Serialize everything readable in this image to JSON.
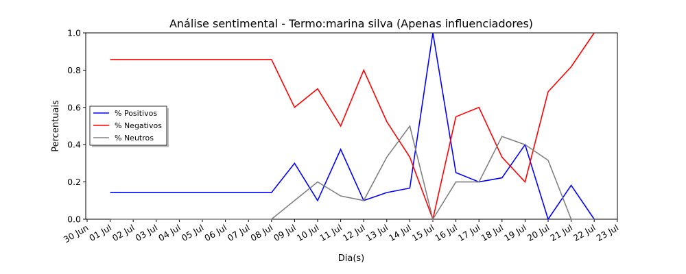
{
  "chart_data": {
    "type": "line",
    "title": "Análise sentimental - Termo:marina silva (Apenas influenciadores)",
    "xlabel": "Dia(s)",
    "ylabel": "Percentuais",
    "ylim": [
      0,
      1
    ],
    "xlim": [
      "30 Jun",
      "23 Jul"
    ],
    "x_tick_labels": [
      "30 Jun",
      "01 Jul",
      "02 Jul",
      "03 Jul",
      "04 Jul",
      "05 Jul",
      "06 Jul",
      "07 Jul",
      "08 Jul",
      "09 Jul",
      "10 Jul",
      "11 Jul",
      "12 Jul",
      "13 Jul",
      "14 Jul",
      "15 Jul",
      "16 Jul",
      "17 Jul",
      "18 Jul",
      "19 Jul",
      "20 Jul",
      "21 Jul",
      "22 Jul",
      "23 Jul"
    ],
    "y_tick_labels": [
      "0.0",
      "0.2",
      "0.4",
      "0.6",
      "0.8",
      "1.0"
    ],
    "y_ticks": [
      0,
      0.2,
      0.4,
      0.6,
      0.8,
      1.0
    ],
    "legend_position": "center-left",
    "grid": false,
    "x": [
      "01 Jul",
      "02 Jul",
      "03 Jul",
      "04 Jul",
      "05 Jul",
      "06 Jul",
      "07 Jul",
      "08 Jul",
      "09 Jul",
      "10 Jul",
      "11 Jul",
      "12 Jul",
      "13 Jul",
      "14 Jul",
      "15 Jul",
      "16 Jul",
      "17 Jul",
      "18 Jul",
      "19 Jul",
      "20 Jul",
      "21 Jul",
      "22 Jul"
    ],
    "series": [
      {
        "name": "% Positivos",
        "color": "#0000ff",
        "values": [
          0.143,
          0.143,
          0.143,
          0.143,
          0.143,
          0.143,
          0.143,
          0.143,
          0.3,
          0.1,
          0.375,
          0.1,
          0.143,
          0.167,
          1.0,
          0.25,
          0.2,
          0.222,
          0.4,
          0.0,
          0.182,
          0.0
        ]
      },
      {
        "name": "% Negativos",
        "color": "#ff0000",
        "values": [
          0.857,
          0.857,
          0.857,
          0.857,
          0.857,
          0.857,
          0.857,
          0.857,
          0.6,
          0.7,
          0.5,
          0.8,
          0.524,
          0.333,
          0.0,
          0.55,
          0.6,
          0.333,
          0.2,
          0.684,
          0.818,
          1.0
        ]
      },
      {
        "name": "% Neutros",
        "color": "#808080",
        "values": [
          0.0,
          0.0,
          0.0,
          0.0,
          0.0,
          0.0,
          0.0,
          0.0,
          0.1,
          0.2,
          0.125,
          0.1,
          0.333,
          0.5,
          0.0,
          0.2,
          0.2,
          0.444,
          0.4,
          0.316,
          0.0,
          0.0
        ]
      }
    ]
  }
}
